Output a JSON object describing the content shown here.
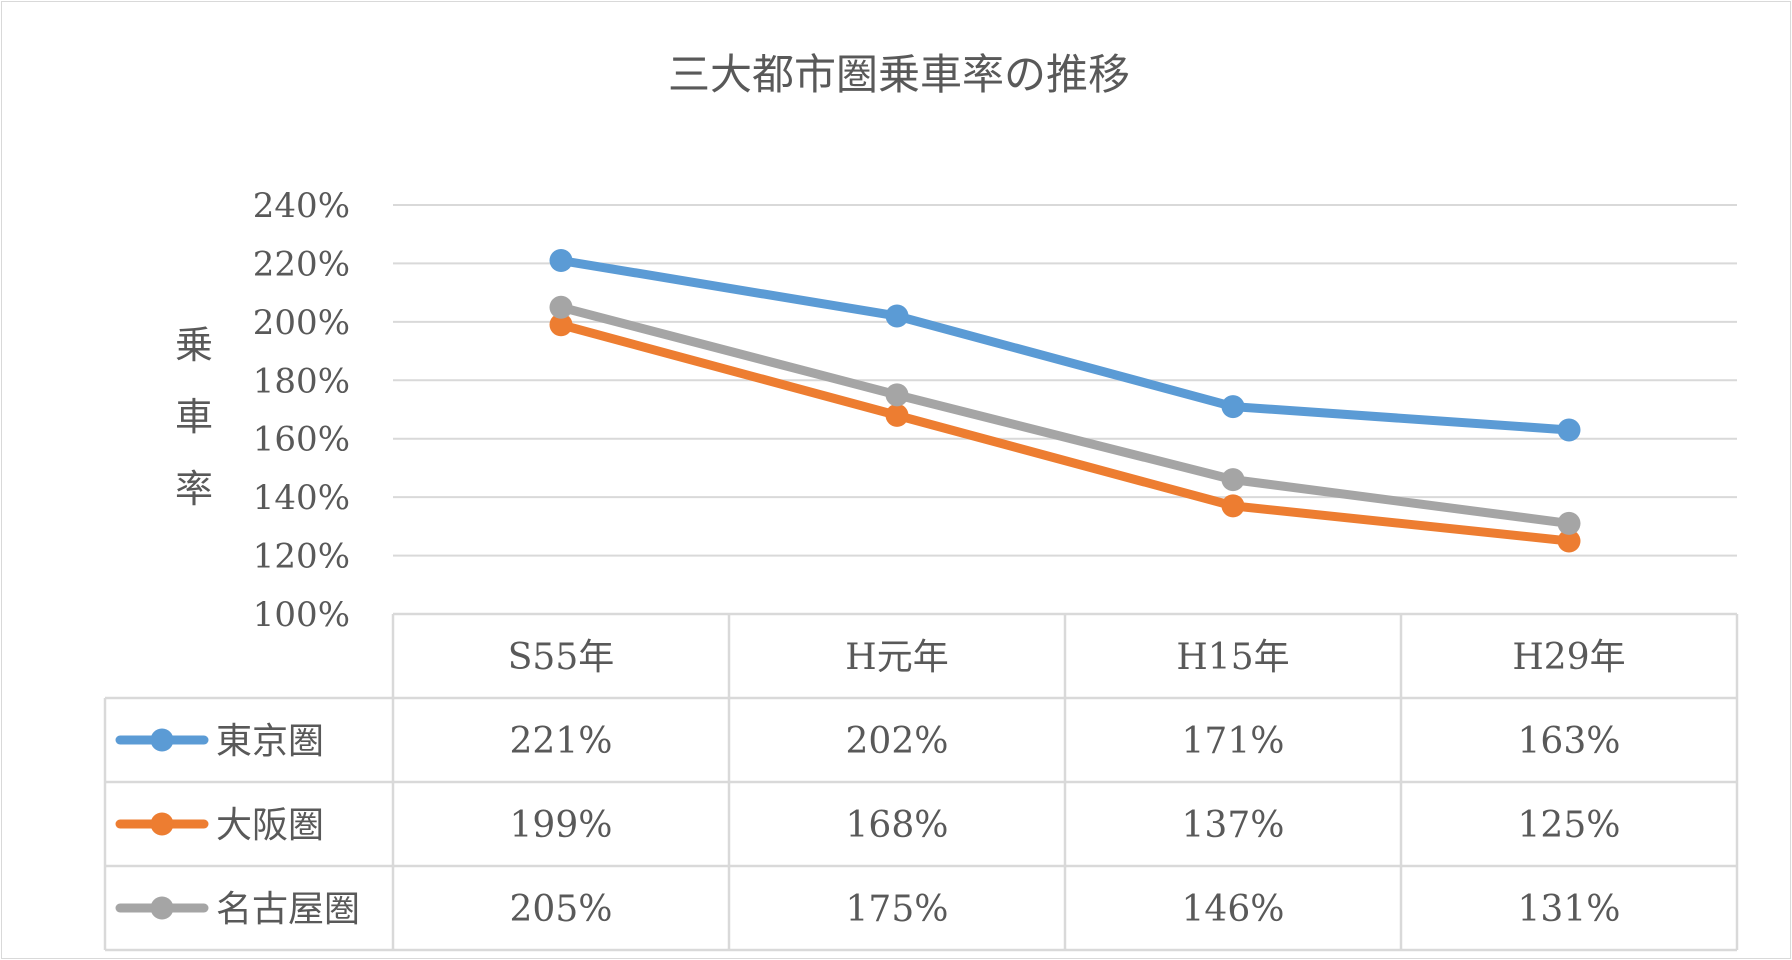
{
  "chart_data": {
    "type": "line",
    "title": "三大都市圏乗車率の推移",
    "ylabel": "乗車率",
    "ylim": [
      1.0,
      2.4
    ],
    "y_ticks": [
      {
        "value": 1.0,
        "label": "100%"
      },
      {
        "value": 1.2,
        "label": "120%"
      },
      {
        "value": 1.4,
        "label": "140%"
      },
      {
        "value": 1.6,
        "label": "160%"
      },
      {
        "value": 1.8,
        "label": "180%"
      },
      {
        "value": 2.0,
        "label": "200%"
      },
      {
        "value": 2.2,
        "label": "220%"
      },
      {
        "value": 2.4,
        "label": "240%"
      }
    ],
    "categories": [
      "S55年",
      "H元年",
      "H15年",
      "H29年"
    ],
    "series": [
      {
        "name": "東京圏",
        "color": "#5b9bd5",
        "values": [
          2.21,
          2.02,
          1.71,
          1.63
        ],
        "labels": [
          "221%",
          "202%",
          "171%",
          "163%"
        ]
      },
      {
        "name": "大阪圏",
        "color": "#ed7d31",
        "values": [
          1.99,
          1.68,
          1.37,
          1.25
        ],
        "labels": [
          "199%",
          "168%",
          "137%",
          "125%"
        ]
      },
      {
        "name": "名古屋圏",
        "color": "#a5a5a5",
        "values": [
          2.05,
          1.75,
          1.46,
          1.31
        ],
        "labels": [
          "205%",
          "175%",
          "146%",
          "131%"
        ]
      }
    ],
    "grid": true,
    "legend": "data-table"
  }
}
